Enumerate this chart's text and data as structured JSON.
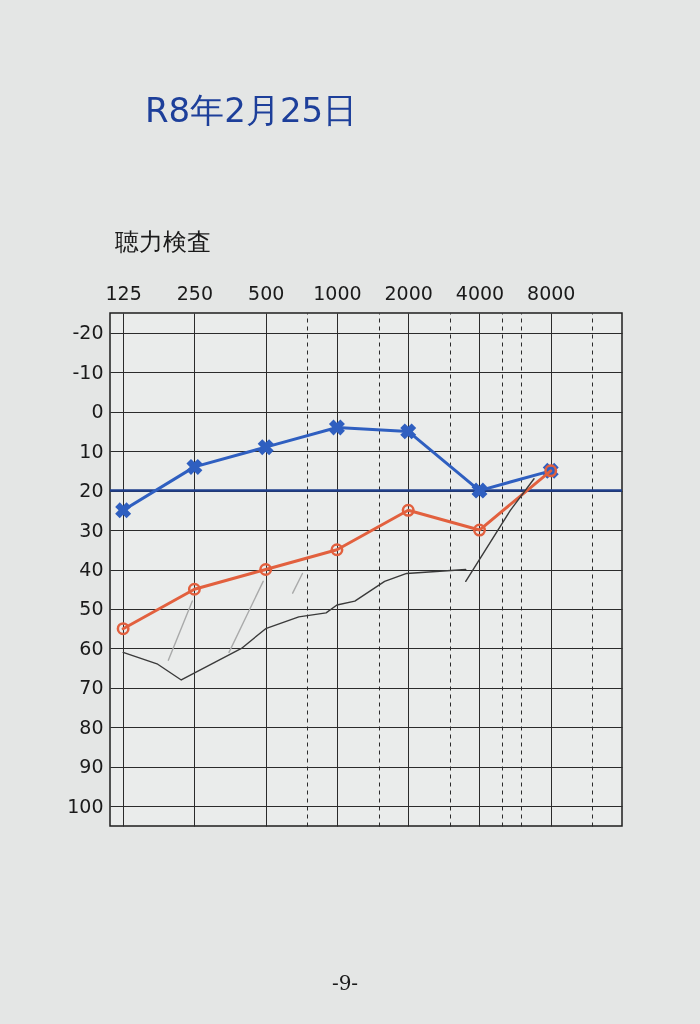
{
  "chart_data": {
    "type": "line",
    "title": "R8年2月25日",
    "subtitle": "聴力検査",
    "annotations": [
      "-9-"
    ],
    "log": "x",
    "xlim": [
      110,
      16000
    ],
    "xticks": [
      125,
      250,
      500,
      {
        "value": 750,
        "label": null
      },
      1000,
      {
        "value": 1500,
        "label": null
      },
      2000,
      {
        "value": 3000,
        "label": null
      },
      4000,
      {
        "value": 5000,
        "label": null
      },
      {
        "value": 6000,
        "label": null
      },
      8000,
      {
        "value": 12000,
        "label": null
      }
    ],
    "ylim": [
      105,
      -25
    ],
    "yticks": [
      -20,
      -10,
      0,
      10,
      20,
      30,
      40,
      50,
      60,
      70,
      80,
      90,
      100
    ],
    "grid": true,
    "ref_lines": [
      {
        "axis": "y",
        "value": 20,
        "color": "#1f3f8c"
      }
    ],
    "series": [
      {
        "color": "#2f5fc0",
        "marker": "cross",
        "x": [
          125,
          250,
          500,
          1000,
          2000,
          4000,
          8000
        ],
        "values": [
          25,
          14,
          9,
          4,
          5,
          20,
          15
        ]
      },
      {
        "color": "#e2603e",
        "marker": "circle",
        "x": [
          125,
          250,
          500,
          1000,
          2000,
          4000,
          8000
        ],
        "values": [
          55,
          45,
          40,
          35,
          25,
          30,
          15
        ]
      },
      {
        "color": "#3a3a3a",
        "marker": "none",
        "x": [
          125,
          175,
          220,
          395,
          500,
          690,
          900,
          1000,
          1190,
          1590,
          1970,
          3500
        ],
        "values": [
          61,
          64,
          68,
          60,
          55,
          52,
          51,
          49,
          48,
          43,
          41,
          40
        ]
      },
      {
        "color": "#3a3a3a",
        "marker": "none",
        "x": [
          3500,
          5400,
          6800
        ],
        "values": [
          43,
          25,
          17
        ]
      },
      {
        "color": "#a9aaaa",
        "marker": "none",
        "x": [
          194,
          245
        ],
        "values": [
          63,
          48
        ]
      },
      {
        "color": "#a9aaaa",
        "marker": "none",
        "x": [
          350,
          488
        ],
        "values": [
          61,
          43
        ]
      },
      {
        "color": "#a9aaaa",
        "marker": "none",
        "x": [
          650,
          715
        ],
        "values": [
          46,
          41
        ]
      }
    ]
  }
}
